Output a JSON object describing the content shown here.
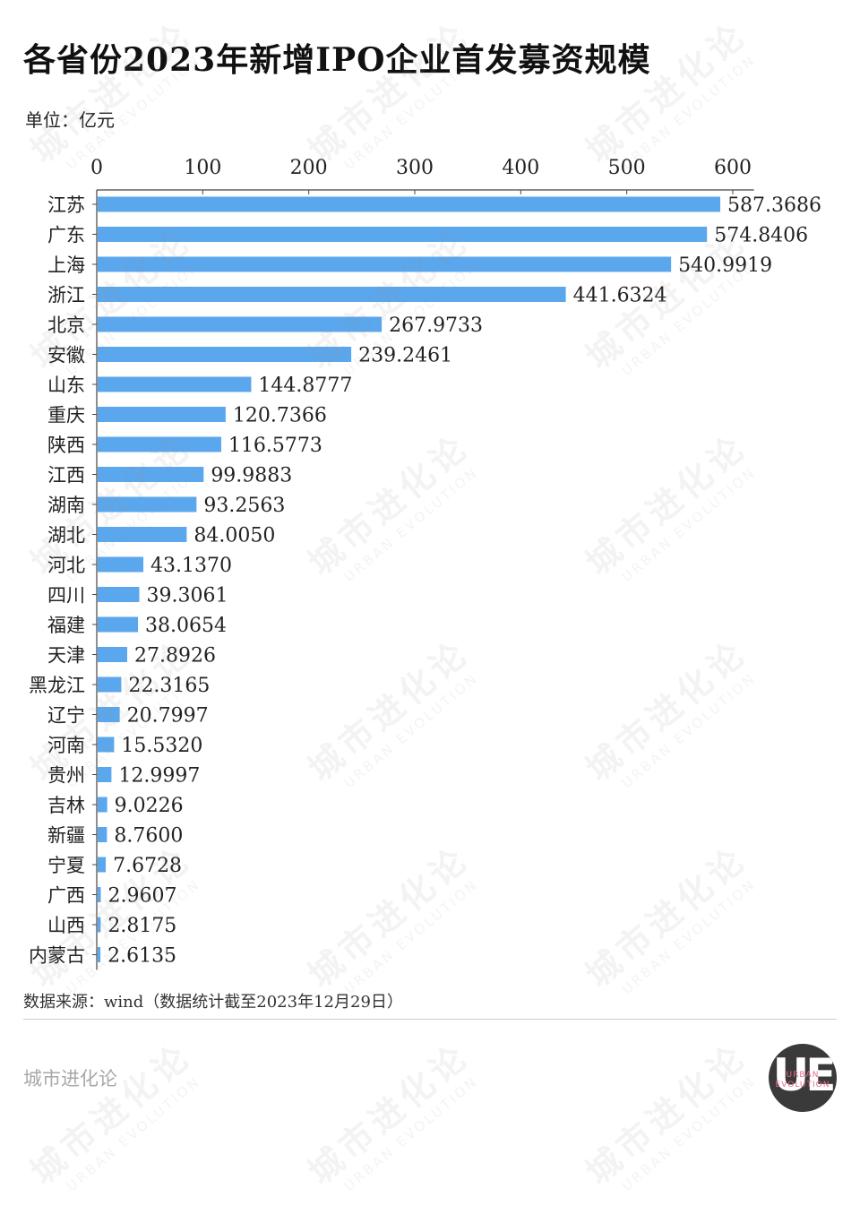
{
  "title": "各省份2023年新增IPO企业首发募资规模",
  "unit": "单位：亿元",
  "source": "数据来源：wind（数据统计截至2023年12月29日）",
  "brand": "城市进化论",
  "logo": {
    "mark": "UE",
    "line1": "URBAN",
    "line2": "EVOLUTION"
  },
  "watermark": {
    "main": "城市进化论",
    "sub": "URBAN EVOLUTION"
  },
  "colors": {
    "bar": "#5aa7ee",
    "axis": "#444444",
    "text": "#222222"
  },
  "chart_data": {
    "type": "bar",
    "orientation": "horizontal",
    "categories": [
      "江苏",
      "广东",
      "上海",
      "浙江",
      "北京",
      "安徽",
      "山东",
      "重庆",
      "陕西",
      "江西",
      "湖南",
      "湖北",
      "河北",
      "四川",
      "福建",
      "天津",
      "黑龙江",
      "辽宁",
      "河南",
      "贵州",
      "吉林",
      "新疆",
      "宁夏",
      "广西",
      "山西",
      "内蒙古"
    ],
    "values": [
      587.3686,
      574.8406,
      540.9919,
      441.6324,
      267.9733,
      239.2461,
      144.8777,
      120.7366,
      116.5773,
      99.9883,
      93.2563,
      84.005,
      43.137,
      39.3061,
      38.0654,
      27.8926,
      22.3165,
      20.7997,
      15.532,
      12.9997,
      9.0226,
      8.76,
      7.6728,
      2.9607,
      2.8175,
      2.6135
    ],
    "value_labels": [
      "587.3686",
      "574.8406",
      "540.9919",
      "441.6324",
      "267.9733",
      "239.2461",
      "144.8777",
      "120.7366",
      "116.5773",
      "99.9883",
      "93.2563",
      "84.0050",
      "43.1370",
      "39.3061",
      "38.0654",
      "27.8926",
      "22.3165",
      "20.7997",
      "15.5320",
      "12.9997",
      "9.0226",
      "8.7600",
      "7.6728",
      "2.9607",
      "2.8175",
      "2.6135"
    ],
    "xlim": [
      0,
      620
    ],
    "xticks": [
      0,
      100,
      200,
      300,
      400,
      500,
      600
    ],
    "axis_position": "top",
    "legend": "none",
    "grid": false
  }
}
